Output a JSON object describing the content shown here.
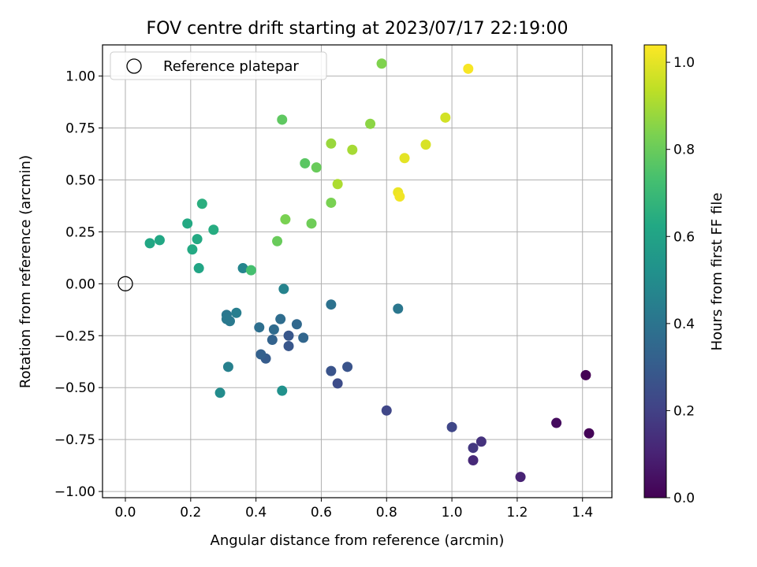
{
  "chart_data": {
    "type": "scatter",
    "title": "FOV centre drift starting at 2023/07/17 22:19:00",
    "xlabel": "Angular distance from reference (arcmin)",
    "ylabel": "Rotation from reference (arcmin)",
    "xlim": [
      -0.07,
      1.49
    ],
    "ylim": [
      -1.03,
      1.15
    ],
    "xticks": [
      0.0,
      0.2,
      0.4,
      0.6,
      0.8,
      1.0,
      1.2,
      1.4
    ],
    "xtick_labels": [
      "0.0",
      "0.2",
      "0.4",
      "0.6",
      "0.8",
      "1.0",
      "1.2",
      "1.4"
    ],
    "yticks": [
      -1.0,
      -0.75,
      -0.5,
      -0.25,
      0.0,
      0.25,
      0.5,
      0.75,
      1.0
    ],
    "ytick_labels": [
      "−1.00",
      "−0.75",
      "−0.50",
      "−0.25",
      "0.00",
      "0.25",
      "0.50",
      "0.75",
      "1.00"
    ],
    "grid": true,
    "legend": {
      "placement": "upper-left",
      "entries": [
        "Reference platepar"
      ]
    },
    "reference_point": {
      "x": 0.0,
      "y": 0.0
    },
    "colorbar": {
      "label": "Hours from first FF file",
      "colormap": "viridis",
      "range": [
        0.0,
        1.04
      ],
      "ticks": [
        0.0,
        0.2,
        0.4,
        0.6,
        0.8,
        1.0
      ],
      "tick_labels": [
        "0.0",
        "0.2",
        "0.4",
        "0.6",
        "0.8",
        "1.0"
      ]
    },
    "points": [
      {
        "x": 1.41,
        "y": -0.44,
        "hours": 0.0
      },
      {
        "x": 1.42,
        "y": -0.72,
        "hours": 0.01
      },
      {
        "x": 1.32,
        "y": -0.67,
        "hours": 0.03
      },
      {
        "x": 1.21,
        "y": -0.93,
        "hours": 0.1
      },
      {
        "x": 1.065,
        "y": -0.85,
        "hours": 0.12
      },
      {
        "x": 1.09,
        "y": -0.76,
        "hours": 0.15
      },
      {
        "x": 1.065,
        "y": -0.79,
        "hours": 0.17
      },
      {
        "x": 1.0,
        "y": -0.69,
        "hours": 0.22
      },
      {
        "x": 0.8,
        "y": -0.61,
        "hours": 0.22
      },
      {
        "x": 0.65,
        "y": -0.48,
        "hours": 0.24
      },
      {
        "x": 0.68,
        "y": -0.4,
        "hours": 0.27
      },
      {
        "x": 0.63,
        "y": -0.42,
        "hours": 0.27
      },
      {
        "x": 0.5,
        "y": -0.3,
        "hours": 0.28
      },
      {
        "x": 0.5,
        "y": -0.25,
        "hours": 0.28
      },
      {
        "x": 0.43,
        "y": -0.36,
        "hours": 0.3
      },
      {
        "x": 0.415,
        "y": -0.34,
        "hours": 0.32
      },
      {
        "x": 0.45,
        "y": -0.27,
        "hours": 0.33
      },
      {
        "x": 0.545,
        "y": -0.26,
        "hours": 0.34
      },
      {
        "x": 0.525,
        "y": -0.195,
        "hours": 0.35
      },
      {
        "x": 0.455,
        "y": -0.22,
        "hours": 0.36
      },
      {
        "x": 0.475,
        "y": -0.17,
        "hours": 0.37
      },
      {
        "x": 0.41,
        "y": -0.21,
        "hours": 0.38
      },
      {
        "x": 0.63,
        "y": -0.1,
        "hours": 0.39
      },
      {
        "x": 0.835,
        "y": -0.12,
        "hours": 0.41
      },
      {
        "x": 0.31,
        "y": -0.15,
        "hours": 0.41
      },
      {
        "x": 0.31,
        "y": -0.17,
        "hours": 0.42
      },
      {
        "x": 0.32,
        "y": -0.18,
        "hours": 0.42
      },
      {
        "x": 0.34,
        "y": -0.14,
        "hours": 0.44
      },
      {
        "x": 0.315,
        "y": -0.4,
        "hours": 0.45
      },
      {
        "x": 0.485,
        "y": -0.025,
        "hours": 0.46
      },
      {
        "x": 0.36,
        "y": 0.075,
        "hours": 0.47
      },
      {
        "x": 0.29,
        "y": -0.525,
        "hours": 0.5
      },
      {
        "x": 0.48,
        "y": -0.515,
        "hours": 0.52
      },
      {
        "x": 0.225,
        "y": 0.075,
        "hours": 0.61
      },
      {
        "x": 0.105,
        "y": 0.21,
        "hours": 0.62
      },
      {
        "x": 0.075,
        "y": 0.195,
        "hours": 0.62
      },
      {
        "x": 0.205,
        "y": 0.165,
        "hours": 0.63
      },
      {
        "x": 0.22,
        "y": 0.215,
        "hours": 0.63
      },
      {
        "x": 0.19,
        "y": 0.29,
        "hours": 0.63
      },
      {
        "x": 0.27,
        "y": 0.26,
        "hours": 0.64
      },
      {
        "x": 0.235,
        "y": 0.385,
        "hours": 0.65
      },
      {
        "x": 0.385,
        "y": 0.065,
        "hours": 0.73
      },
      {
        "x": 0.55,
        "y": 0.58,
        "hours": 0.77
      },
      {
        "x": 0.48,
        "y": 0.79,
        "hours": 0.78
      },
      {
        "x": 0.585,
        "y": 0.56,
        "hours": 0.8
      },
      {
        "x": 0.465,
        "y": 0.205,
        "hours": 0.8
      },
      {
        "x": 0.57,
        "y": 0.29,
        "hours": 0.81
      },
      {
        "x": 0.49,
        "y": 0.31,
        "hours": 0.83
      },
      {
        "x": 0.63,
        "y": 0.39,
        "hours": 0.83
      },
      {
        "x": 0.785,
        "y": 1.06,
        "hours": 0.84
      },
      {
        "x": 0.75,
        "y": 0.77,
        "hours": 0.86
      },
      {
        "x": 0.63,
        "y": 0.675,
        "hours": 0.88
      },
      {
        "x": 0.695,
        "y": 0.645,
        "hours": 0.9
      },
      {
        "x": 0.65,
        "y": 0.48,
        "hours": 0.91
      },
      {
        "x": 0.98,
        "y": 0.8,
        "hours": 0.97
      },
      {
        "x": 0.92,
        "y": 0.67,
        "hours": 0.98
      },
      {
        "x": 0.855,
        "y": 0.605,
        "hours": 1.0
      },
      {
        "x": 0.835,
        "y": 0.44,
        "hours": 1.01
      },
      {
        "x": 0.84,
        "y": 0.42,
        "hours": 1.02
      },
      {
        "x": 1.05,
        "y": 1.035,
        "hours": 1.03
      }
    ]
  }
}
